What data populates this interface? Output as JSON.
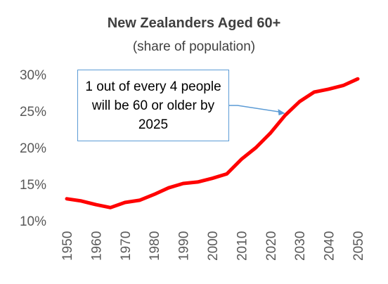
{
  "chart_data": {
    "type": "line",
    "title": "New Zealanders Aged 60+",
    "subtitle": "(share of population)",
    "xlabel": "",
    "ylabel": "",
    "x": [
      1950,
      1955,
      1960,
      1965,
      1970,
      1975,
      1980,
      1985,
      1990,
      1995,
      2000,
      2005,
      2010,
      2015,
      2020,
      2025,
      2030,
      2035,
      2040,
      2045,
      2050
    ],
    "x_ticks": [
      "1950",
      "1960",
      "1970",
      "1980",
      "1990",
      "2000",
      "2010",
      "2020",
      "2030",
      "2040",
      "2050"
    ],
    "y_ticks": [
      "10%",
      "15%",
      "20%",
      "25%",
      "30%"
    ],
    "ylim": [
      10,
      30
    ],
    "grid": false,
    "series": [
      {
        "name": "",
        "color": "#ff0000",
        "values": [
          13.0,
          12.7,
          12.2,
          11.8,
          12.5,
          12.8,
          13.6,
          14.5,
          15.1,
          15.3,
          15.8,
          16.4,
          18.4,
          20.0,
          22.0,
          24.4,
          26.3,
          27.6,
          28.0,
          28.5,
          29.4
        ]
      }
    ],
    "annotations": [
      {
        "text": "1 out of every 4 people will be 60 or older by 2025",
        "x": 2025,
        "y": 24.7,
        "color": "#5b9bd5"
      }
    ]
  }
}
